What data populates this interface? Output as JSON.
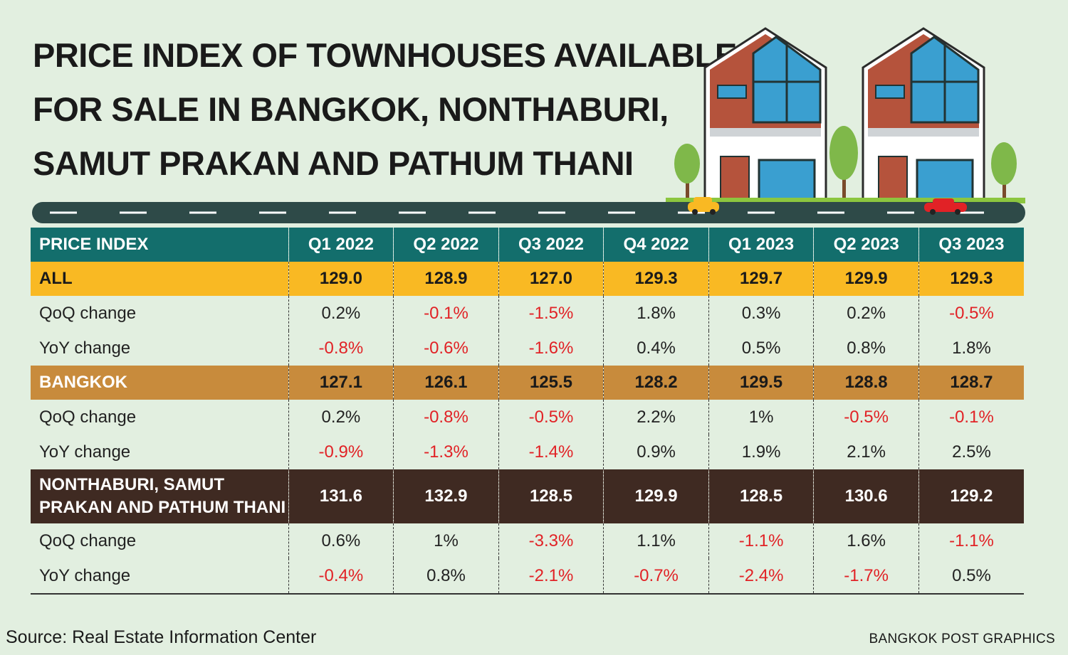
{
  "title_lines": [
    "PRICE INDEX OF TOWNHOUSES AVAILABLE",
    "FOR SALE IN BANGKOK, NONTHABURI,",
    "SAMUT PRAKAN AND PATHUM THANI"
  ],
  "source": "Source: Real Estate Information Center",
  "credit": "BANGKOK POST GRAPHICS",
  "colors": {
    "header": "#136e6c",
    "all_row": "#f9b923",
    "bangkok_row": "#c88b3c",
    "nonthaburi_row": "#3f2a22",
    "negative": "#e12226",
    "background": "#e2efe0"
  },
  "chart_data": {
    "type": "table",
    "columns": [
      "PRICE INDEX",
      "Q1 2022",
      "Q2 2022",
      "Q3 2022",
      "Q4 2022",
      "Q1 2023",
      "Q2 2023",
      "Q3 2023"
    ],
    "groups": [
      {
        "name": "ALL",
        "index": [
          "129.0",
          "128.9",
          "127.0",
          "129.3",
          "129.7",
          "129.9",
          "129.3"
        ],
        "qoq_label": "QoQ change",
        "qoq": [
          "0.2%",
          "-0.1%",
          "-1.5%",
          "1.8%",
          "0.3%",
          "0.2%",
          "-0.5%"
        ],
        "yoy_label": "YoY change",
        "yoy": [
          "-0.8%",
          "-0.6%",
          "-1.6%",
          "0.4%",
          "0.5%",
          "0.8%",
          "1.8%"
        ]
      },
      {
        "name": "BANGKOK",
        "index": [
          "127.1",
          "126.1",
          "125.5",
          "128.2",
          "129.5",
          "128.8",
          "128.7"
        ],
        "qoq_label": "QoQ change",
        "qoq": [
          "0.2%",
          "-0.8%",
          "-0.5%",
          "2.2%",
          "1%",
          "-0.5%",
          "-0.1%"
        ],
        "yoy_label": "YoY change",
        "yoy": [
          "-0.9%",
          "-1.3%",
          "-1.4%",
          "0.9%",
          "1.9%",
          "2.1%",
          "2.5%"
        ]
      },
      {
        "name": "NONTHABURI, SAMUT PRAKAN AND PATHUM THANI",
        "index": [
          "131.6",
          "132.9",
          "128.5",
          "129.9",
          "128.5",
          "130.6",
          "129.2"
        ],
        "qoq_label": "QoQ change",
        "qoq": [
          "0.6%",
          "1%",
          "-3.3%",
          "1.1%",
          "-1.1%",
          "1.6%",
          "-1.1%"
        ],
        "yoy_label": "YoY change",
        "yoy": [
          "-0.4%",
          "0.8%",
          "-2.1%",
          "-0.7%",
          "-2.4%",
          "-1.7%",
          "0.5%"
        ]
      }
    ]
  }
}
